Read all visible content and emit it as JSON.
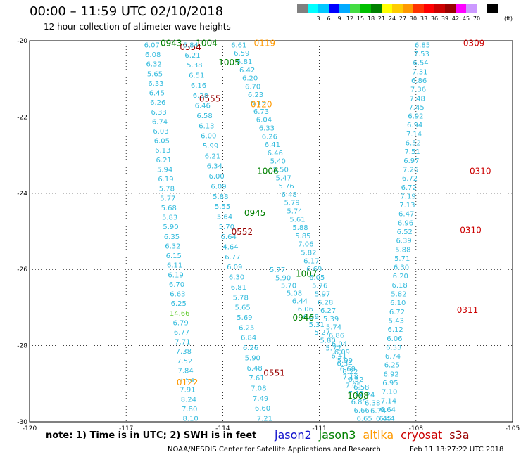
{
  "title": "00:00 – 11:59 UTC 02/10/2018",
  "subtitle": "12 hour collection of altimeter wave heights",
  "note": "note:  1) Time is in UTC;  2) SWH is in feet",
  "credit": "NOAA/NESDIS Center for Satellite Applications and Research",
  "timestamp": "Feb 11 13:27:22 UTC 2018",
  "satellites": [
    {
      "name": "jason2",
      "color": "#1010cc"
    },
    {
      "name": "jason3",
      "color": "#008000"
    },
    {
      "name": "altika",
      "color": "#ff9900"
    },
    {
      "name": "cryosat",
      "color": "#cc0000"
    },
    {
      "name": "s3a",
      "color": "#990000"
    }
  ],
  "scale": {
    "unit": "(ft)",
    "colors": [
      "#808080",
      "#00ffff",
      "#00c8ff",
      "#0000ff",
      "#00aaff",
      "#44dd44",
      "#00c000",
      "#008000",
      "#ffff00",
      "#ffcc00",
      "#ff9900",
      "#ff3300",
      "#ff0000",
      "#cc0000",
      "#990000",
      "#ff00ff",
      "#cc99ff",
      "#ffffff",
      "#000000"
    ],
    "labels": [
      "3",
      "6",
      "9",
      "12",
      "15",
      "18",
      "21",
      "24",
      "27",
      "30",
      "33",
      "36",
      "39",
      "42",
      "45",
      "70"
    ]
  },
  "axes": {
    "x_ticks": [
      "-120",
      "-117",
      "-114",
      "-111",
      "-108",
      "-105"
    ],
    "y_ticks": [
      "-20",
      "-22",
      "-24",
      "-26",
      "-28",
      "-30"
    ]
  },
  "chart_data": {
    "type": "map",
    "lon_range": [
      -120,
      -105
    ],
    "lat_range": [
      -30,
      -20
    ],
    "swh_color": "#33bbdd",
    "tracks": [
      {
        "name": "track-a",
        "lon_start": -116.2,
        "lon_end": -115.0,
        "lat_start": -20.1,
        "lat_end": -29.9,
        "color": "#33bbdd",
        "labels": [
          "6.07",
          "6.08",
          "6.32",
          "5.65",
          "6.33",
          "6.45",
          "6.26",
          "6.33",
          "6.74",
          "6.03",
          "6.05",
          "6.13",
          "6.21",
          "5.94",
          "6.19",
          "5.78",
          "5.77",
          "5.68",
          "5.83",
          "5.90",
          "6.35",
          "6.32",
          "6.15",
          "6.11",
          "6.19",
          "6.70",
          "6.63",
          "6.25",
          "14.66",
          "6.79",
          "6.77",
          "7.71",
          "7.38",
          "7.52",
          "7.84",
          "7.54",
          "7.91",
          "8.24",
          "7.80",
          "8.10"
        ],
        "label_colors": {
          "28": "#66cc33"
        }
      },
      {
        "name": "track-b",
        "lon_start": -115.0,
        "lon_end": -112.7,
        "lat_start": -20.1,
        "lat_end": -29.9,
        "color": "#33bbdd",
        "labels": [
          "6.84",
          "6.21",
          "5.38",
          "6.51",
          "6.16",
          "6.28",
          "6.46",
          "6.58",
          "6.13",
          "6.00",
          "5.99",
          "6.21",
          "6.34",
          "6.00",
          "6.09",
          "5.88",
          "5.55",
          "5.64",
          "5.70",
          "6.64",
          "4.64",
          "6.77",
          "6.09",
          "6.30",
          "6.81",
          "5.78",
          "5.65",
          "5.69",
          "6.25",
          "6.84",
          "6.26",
          "5.90",
          "6.48",
          "7.61",
          "7.08",
          "7.49",
          "6.60",
          "7.21"
        ]
      },
      {
        "name": "track-c",
        "lon_start": -113.5,
        "lon_end": -109.6,
        "lat_start": -20.1,
        "lat_end": -29.9,
        "color": "#33bbdd",
        "labels": [
          "6.61",
          "6.59",
          "5.81",
          "6.42",
          "6.20",
          "6.70",
          "6.23",
          "6.15",
          "6.73",
          "6.04",
          "6.33",
          "6.26",
          "6.41",
          "6.46",
          "5.40",
          "5.50",
          "5.47",
          "5.76",
          "6.48",
          "5.79",
          "5.74",
          "5.61",
          "5.88",
          "5.85",
          "7.06",
          "5.82",
          "6.17",
          "6.69",
          "6.05",
          "5.76",
          "5.97",
          "6.28",
          "6.27",
          "5.39",
          "5.74",
          "6.86",
          "6.04",
          "6.09",
          "5.99",
          "6.69",
          "7.18",
          "7.05",
          "7.12",
          "6.85",
          "6.66",
          "6.65"
        ]
      },
      {
        "name": "track-d",
        "lon_start": -112.3,
        "lon_end": -109.0,
        "lat_start": -26.0,
        "lat_end": -29.9,
        "color": "#33bbdd",
        "labels": [
          "5.77",
          "5.90",
          "5.70",
          "5.08",
          "6.44",
          "6.06",
          "6.59",
          "5.31",
          "5.27",
          "5.80",
          "5.72",
          "6.41",
          "6.34",
          "6.22",
          "6.52",
          "6.58",
          "7.24",
          "6.38",
          "6.74",
          "6.45"
        ]
      },
      {
        "name": "track-e",
        "lon_start": -107.8,
        "lon_end": -108.9,
        "lat_start": -20.1,
        "lat_end": -29.9,
        "color": "#33bbdd",
        "labels": [
          "6.85",
          "7.53",
          "6.54",
          "7.31",
          "6.86",
          "7.36",
          "7.48",
          "7.45",
          "6.92",
          "6.94",
          "7.14",
          "6.52",
          "7.51",
          "6.97",
          "7.26",
          "6.72",
          "6.72",
          "7.19",
          "7.13",
          "6.47",
          "6.96",
          "6.52",
          "6.39",
          "5.88",
          "5.71",
          "6.30",
          "6.20",
          "6.18",
          "5.82",
          "6.10",
          "6.72",
          "5.43",
          "6.12",
          "6.06",
          "6.33",
          "6.74",
          "6.25",
          "6.92",
          "6.95",
          "7.10",
          "7.14",
          "6.64",
          "6.44"
        ]
      }
    ],
    "pass_labels": [
      {
        "text": "0943",
        "lon": -115.6,
        "lat": -20.05,
        "color": "#008000"
      },
      {
        "text": "1004",
        "lon": -114.5,
        "lat": -20.05,
        "color": "#008000"
      },
      {
        "text": "0554",
        "lon": -115.0,
        "lat": -20.15,
        "color": "#990000"
      },
      {
        "text": "0119",
        "lon": -112.7,
        "lat": -20.05,
        "color": "#ff9900"
      },
      {
        "text": "0309",
        "lon": -106.2,
        "lat": -20.05,
        "color": "#cc0000"
      },
      {
        "text": "1005",
        "lon": -113.8,
        "lat": -20.55,
        "color": "#008000"
      },
      {
        "text": "0555",
        "lon": -114.4,
        "lat": -21.5,
        "color": "#990000"
      },
      {
        "text": "0120",
        "lon": -112.8,
        "lat": -21.65,
        "color": "#ff9900"
      },
      {
        "text": "1006",
        "lon": -112.6,
        "lat": -23.4,
        "color": "#008000"
      },
      {
        "text": "0310",
        "lon": -106.0,
        "lat": -23.4,
        "color": "#cc0000"
      },
      {
        "text": "0945",
        "lon": -113.0,
        "lat": -24.5,
        "color": "#008000"
      },
      {
        "text": "0552",
        "lon": -113.4,
        "lat": -25.0,
        "color": "#990000"
      },
      {
        "text": "0310",
        "lon": -106.3,
        "lat": -24.95,
        "color": "#cc0000"
      },
      {
        "text": "1007",
        "lon": -111.4,
        "lat": -26.1,
        "color": "#008000"
      },
      {
        "text": "0311",
        "lon": -106.4,
        "lat": -27.05,
        "color": "#cc0000"
      },
      {
        "text": "0946",
        "lon": -111.5,
        "lat": -27.25,
        "color": "#008000"
      },
      {
        "text": "0551",
        "lon": -112.4,
        "lat": -28.7,
        "color": "#990000"
      },
      {
        "text": "1008",
        "lon": -109.8,
        "lat": -29.3,
        "color": "#008000"
      },
      {
        "text": "0122",
        "lon": -115.1,
        "lat": -28.95,
        "color": "#ff9900"
      }
    ]
  }
}
